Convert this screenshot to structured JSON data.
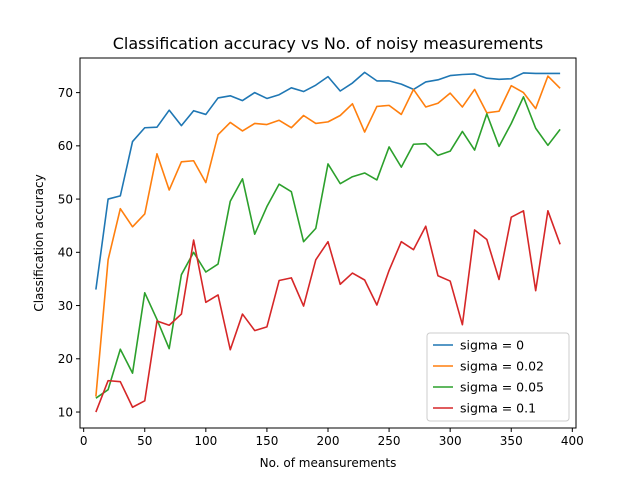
{
  "chart_data": {
    "type": "line",
    "title": "Classification accuracy vs No. of noisy measurements",
    "xlabel": "No. of meansurements",
    "ylabel": "Classification accuracy",
    "xlim": [
      -3,
      403
    ],
    "ylim": [
      7,
      76.5
    ],
    "xticks": [
      0,
      50,
      100,
      150,
      200,
      250,
      300,
      350,
      400
    ],
    "yticks": [
      10,
      20,
      30,
      40,
      50,
      60,
      70
    ],
    "grid": false,
    "legend_position": "lower-right",
    "x": [
      10,
      20,
      30,
      40,
      50,
      60,
      70,
      80,
      90,
      100,
      110,
      120,
      130,
      140,
      150,
      160,
      170,
      180,
      190,
      200,
      210,
      220,
      230,
      240,
      250,
      260,
      270,
      280,
      290,
      300,
      310,
      320,
      330,
      340,
      350,
      360,
      370,
      380,
      390
    ],
    "series": [
      {
        "name": "sigma = 0",
        "color": "#1f77b4",
        "values": [
          33.0,
          50.0,
          50.6,
          60.8,
          63.4,
          63.5,
          66.7,
          63.8,
          66.6,
          65.9,
          69.0,
          69.4,
          68.5,
          70.0,
          68.9,
          69.6,
          70.9,
          70.2,
          71.4,
          73.0,
          70.3,
          71.8,
          73.8,
          72.2,
          72.2,
          71.6,
          70.6,
          72.0,
          72.4,
          73.2,
          73.4,
          73.5,
          72.7,
          72.5,
          72.6,
          73.7,
          73.6,
          73.6,
          73.6
        ]
      },
      {
        "name": "sigma = 0.02",
        "color": "#ff7f0e",
        "values": [
          12.9,
          38.6,
          48.2,
          44.8,
          47.2,
          58.5,
          51.7,
          57.0,
          57.2,
          53.1,
          62.1,
          64.4,
          62.8,
          64.2,
          64.0,
          64.8,
          63.4,
          65.7,
          64.2,
          64.5,
          65.7,
          67.9,
          62.6,
          67.4,
          67.6,
          65.9,
          70.6,
          67.3,
          68.0,
          69.9,
          67.3,
          70.6,
          66.2,
          66.5,
          71.3,
          70.0,
          67.0,
          73.1,
          70.8
        ]
      },
      {
        "name": "sigma = 0.05",
        "color": "#2ca02c",
        "values": [
          12.6,
          14.2,
          21.8,
          17.3,
          32.4,
          27.4,
          21.9,
          35.8,
          40.0,
          36.3,
          37.8,
          49.6,
          53.8,
          43.4,
          48.6,
          52.8,
          51.4,
          42.0,
          44.5,
          56.6,
          52.9,
          54.2,
          54.9,
          53.6,
          59.8,
          56.0,
          60.3,
          60.4,
          58.2,
          59.0,
          62.7,
          59.2,
          66.0,
          59.9,
          64.2,
          69.2,
          63.3,
          60.1,
          63.1
        ]
      },
      {
        "name": "sigma = 0.1",
        "color": "#d62728",
        "values": [
          10.0,
          15.9,
          15.7,
          10.9,
          12.1,
          27.1,
          26.3,
          28.4,
          42.3,
          30.6,
          32.0,
          21.7,
          28.4,
          25.3,
          26.0,
          34.7,
          35.2,
          29.9,
          38.6,
          42.0,
          34.0,
          36.1,
          34.8,
          30.1,
          36.6,
          42.0,
          40.5,
          44.9,
          35.6,
          34.6,
          26.4,
          44.2,
          42.4,
          34.9,
          46.6,
          47.8,
          32.8,
          47.8,
          41.5
        ]
      }
    ]
  }
}
